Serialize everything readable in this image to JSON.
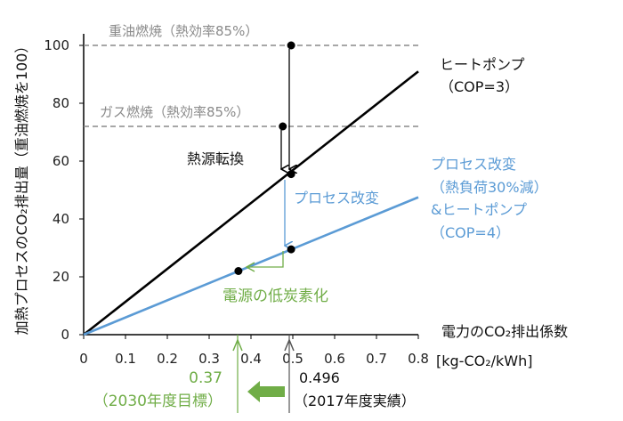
{
  "chart_data": {
    "type": "line",
    "x_range": [
      0,
      0.8
    ],
    "y_range": [
      0,
      100
    ],
    "x_ticks": [
      "0",
      "0.1",
      "0.2",
      "0.3",
      "0.4",
      "0.5",
      "0.6",
      "0.7",
      "0.8"
    ],
    "y_ticks": [
      "0",
      "20",
      "40",
      "60",
      "80",
      "100"
    ],
    "x_axis_title": "電力のCO₂排出係数",
    "x_axis_unit": "[kg-CO₂/kWh]",
    "y_axis_title": "加熱プロセスのCO₂排出量（重油燃焼を100）",
    "series": [
      {
        "name": "ヒートポンプ（COP=3）",
        "color": "#000000",
        "x": [
          0,
          0.8
        ],
        "y": [
          0,
          91
        ]
      },
      {
        "name": "プロセス改変（熱負荷30%減）&ヒートポンプ（COP=4）",
        "color": "#5b9bd5",
        "x": [
          0,
          0.8
        ],
        "y": [
          0,
          47.5
        ]
      }
    ],
    "reference_lines": [
      {
        "label": "重油燃焼（熱効率85%）",
        "y": 100
      },
      {
        "label": "ガス燃焼（熱効率85%）",
        "y": 72
      }
    ],
    "points": [
      {
        "x": 0.496,
        "y": 100
      },
      {
        "x": 0.476,
        "y": 72
      },
      {
        "x": 0.496,
        "y": 55.5
      },
      {
        "x": 0.496,
        "y": 29.5
      },
      {
        "x": 0.37,
        "y": 22
      }
    ],
    "annotations": {
      "heat_source_conversion": "熱源転換",
      "process_change": "プロセス改変",
      "low_carbon_power": "電源の低炭素化",
      "hp_label_line1": "ヒートポンプ",
      "hp_label_line2": "（COP=3）",
      "blue_label_line1": "プロセス改変",
      "blue_label_line2": "（熱負荷30%減）",
      "blue_label_line3": "&ヒートポンプ",
      "blue_label_line4": "（COP=4）"
    },
    "x_markers": [
      {
        "value_label": "0.37",
        "year_label": "（2030年度目標）",
        "x": 0.37,
        "color": "#70ad47"
      },
      {
        "value_label": "0.496",
        "year_label": "（2017年度実績）",
        "x": 0.496,
        "color": "#333333"
      }
    ],
    "colors": {
      "black_line": "#000000",
      "blue_line": "#5b9bd5",
      "green": "#70ad47",
      "dashed": "#8a8a8a"
    }
  }
}
